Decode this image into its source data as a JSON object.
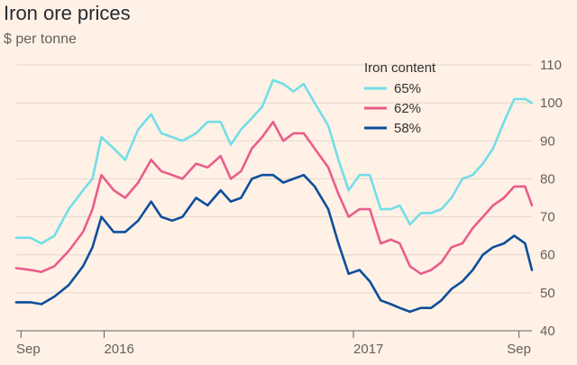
{
  "title": "Iron ore prices",
  "subtitle": "$ per tonne",
  "chart_data": {
    "type": "line",
    "title": "Iron ore prices",
    "subtitle": "$ per tonne",
    "xlabel": "",
    "ylabel": "$ per tonne",
    "x_ticks": [
      "Sep",
      "2016",
      "2017",
      "Sep"
    ],
    "y_ticks": [
      40,
      50,
      60,
      70,
      80,
      90,
      100,
      110
    ],
    "ylim": [
      40,
      110
    ],
    "xlim": [
      "2015-08-25",
      "2017-09-20"
    ],
    "grid": "horizontal",
    "legend_title": "Iron content",
    "legend_position": "top-right",
    "x": [
      "2015-08-25",
      "2015-09-15",
      "2015-10-01",
      "2015-10-20",
      "2015-11-10",
      "2015-12-01",
      "2015-12-15",
      "2015-12-28",
      "2016-01-15",
      "2016-02-01",
      "2016-02-20",
      "2016-03-10",
      "2016-03-25",
      "2016-04-10",
      "2016-04-25",
      "2016-05-15",
      "2016-06-01",
      "2016-06-20",
      "2016-07-05",
      "2016-07-20",
      "2016-08-05",
      "2016-08-20",
      "2016-09-05",
      "2016-09-20",
      "2016-10-05",
      "2016-10-20",
      "2016-11-05",
      "2016-11-25",
      "2016-12-10",
      "2016-12-25",
      "2017-01-10",
      "2017-01-25",
      "2017-02-10",
      "2017-02-25",
      "2017-03-10",
      "2017-03-25",
      "2017-04-10",
      "2017-04-25",
      "2017-05-10",
      "2017-05-25",
      "2017-06-10",
      "2017-06-25",
      "2017-07-10",
      "2017-07-25",
      "2017-08-10",
      "2017-08-25",
      "2017-09-10",
      "2017-09-20"
    ],
    "series": [
      {
        "name": "65%",
        "color": "#72DEE7",
        "values": [
          64.5,
          64.5,
          63,
          65,
          72,
          77,
          80,
          91,
          88,
          85,
          93,
          97,
          92,
          91,
          90,
          92,
          95,
          95,
          89,
          93,
          96,
          99,
          106,
          105,
          103,
          105,
          100,
          94,
          85,
          77,
          81,
          81,
          72,
          72,
          73,
          68,
          71,
          71,
          72,
          75,
          80,
          81,
          84,
          88,
          95,
          101,
          101,
          100
        ]
      },
      {
        "name": "62%",
        "color": "#E95D8C",
        "values": [
          56.5,
          56,
          55.5,
          57,
          61,
          66,
          72,
          81,
          77,
          75,
          79,
          85,
          82,
          81,
          80,
          84,
          83,
          86,
          80,
          82,
          88,
          91,
          95,
          90,
          92,
          92,
          88,
          83,
          76,
          70,
          72,
          72,
          63,
          64,
          63,
          57,
          55,
          56,
          58,
          62,
          63,
          67,
          70,
          73,
          75,
          78,
          78,
          73
        ]
      },
      {
        "name": "58%",
        "color": "#0D4E9C",
        "values": [
          47.5,
          47.5,
          47,
          49,
          52,
          57,
          62,
          70,
          66,
          66,
          69,
          74,
          70,
          69,
          70,
          75,
          73,
          77,
          74,
          75,
          80,
          81,
          81,
          79,
          80,
          81,
          78,
          72,
          63,
          55,
          56,
          53,
          48,
          47,
          46,
          45,
          46,
          46,
          48,
          51,
          53,
          56,
          60,
          62,
          63,
          65,
          63,
          56
        ]
      }
    ]
  }
}
